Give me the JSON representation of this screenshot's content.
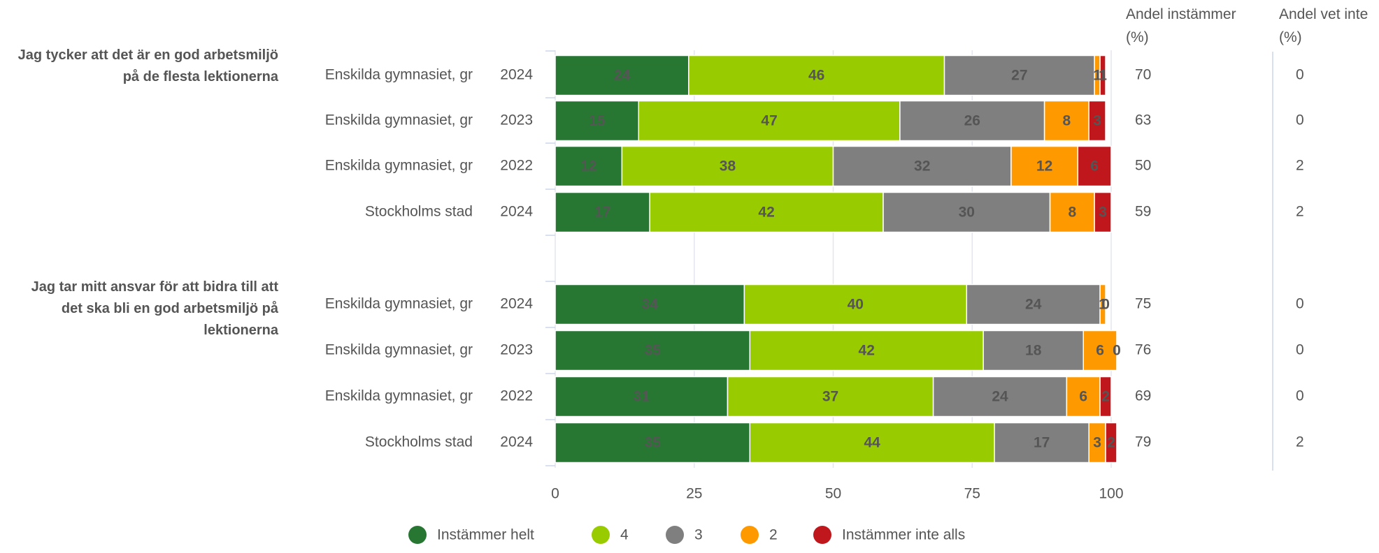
{
  "chart_data": {
    "type": "stacked-bar-horizontal",
    "questions": [
      {
        "label": "Jag tycker att det är en god arbetsmiljö på de flesta lektionerna"
      },
      {
        "label": "Jag tar mitt ansvar för att bidra till att det ska bli en god arbetsmiljö på lektionerna"
      }
    ],
    "rows": [
      {
        "name": "Enskilda gymnasiet, gr",
        "year": "2024"
      },
      {
        "name": "Enskilda gymnasiet, gr",
        "year": "2023"
      },
      {
        "name": "Enskilda gymnasiet, gr",
        "year": "2022"
      },
      {
        "name": "Stockholms stad",
        "year": "2024"
      },
      {
        "name": "Enskilda gymnasiet, gr",
        "year": "2024"
      },
      {
        "name": "Enskilda gymnasiet, gr",
        "year": "2023"
      },
      {
        "name": "Enskilda gymnasiet, gr",
        "year": "2022"
      },
      {
        "name": "Stockholms stad",
        "year": "2024"
      }
    ],
    "series": [
      {
        "name": "Instämmer helt",
        "color": "#277733",
        "label_color": "#ffffff",
        "values": [
          24,
          15,
          12,
          17,
          34,
          35,
          31,
          35
        ]
      },
      {
        "name": "4",
        "color": "#99cc00",
        "label_color": "#000000",
        "values": [
          46,
          47,
          38,
          42,
          40,
          42,
          37,
          44
        ]
      },
      {
        "name": "3",
        "color": "#7f7f7f",
        "label_color": "#000000",
        "values": [
          27,
          26,
          32,
          30,
          24,
          18,
          24,
          17
        ]
      },
      {
        "name": "2",
        "color": "#ff9900",
        "label_color": "#000000",
        "values": [
          1,
          8,
          12,
          8,
          1,
          6,
          6,
          3
        ]
      },
      {
        "name": "Instämmer inte alls",
        "color": "#c0171d",
        "label_color": "#ffffff",
        "values": [
          1,
          3,
          6,
          3,
          0,
          0,
          2,
          2
        ]
      }
    ],
    "extra_columns": [
      {
        "title": "Andel instämmer (%)",
        "values": [
          70,
          63,
          50,
          59,
          75,
          76,
          69,
          79
        ]
      },
      {
        "title": "Andel vet inte (%)",
        "values": [
          0,
          0,
          2,
          2,
          0,
          0,
          0,
          2
        ]
      }
    ],
    "xlim": [
      0,
      100
    ],
    "xticks": [
      0,
      25,
      50,
      75,
      100
    ],
    "grid": true
  }
}
